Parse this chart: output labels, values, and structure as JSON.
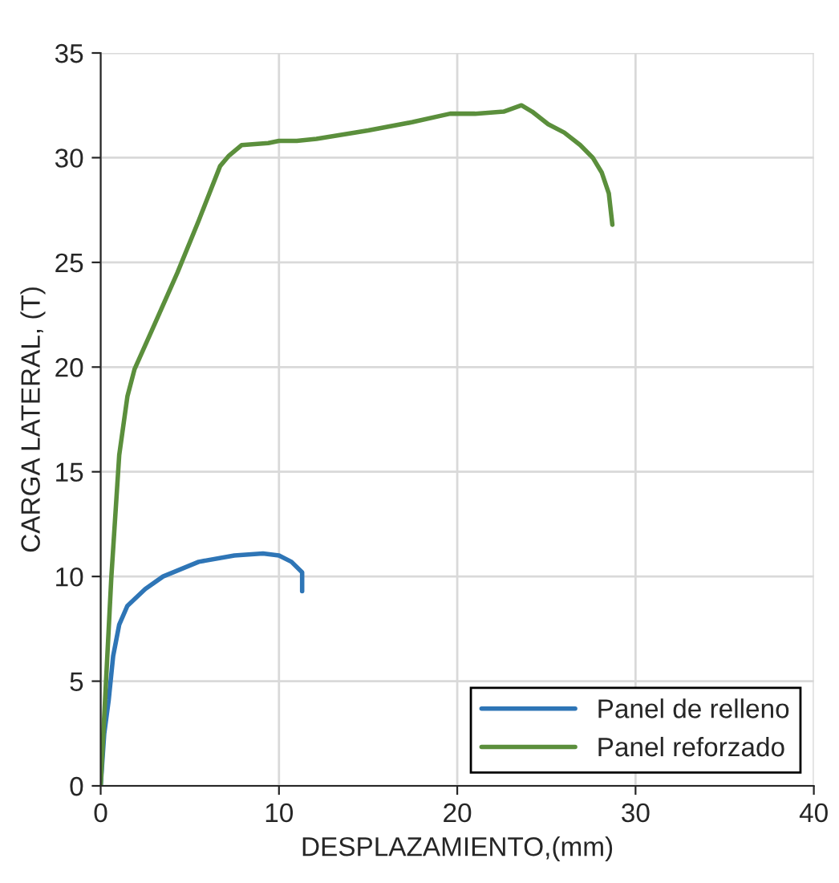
{
  "chart_data": {
    "type": "line",
    "xlabel": "DESPLAZAMIENTO,(mm)",
    "ylabel": "CARGA LATERAL, (T)",
    "xlim": [
      0,
      40
    ],
    "xticks": [
      0,
      10,
      20,
      30,
      40
    ],
    "ylim": [
      0,
      35
    ],
    "yticks": [
      0,
      5,
      10,
      15,
      20,
      25,
      30,
      35
    ],
    "grid": true,
    "legend": "bottom right",
    "series": [
      {
        "name": "Panel de relleno",
        "color": "#2e75b6",
        "x": [
          0,
          0.2,
          0.45,
          0.7,
          1.04,
          1.5,
          2.5,
          3.5,
          5.5,
          7.5,
          9.1,
          10,
          10.7,
          11.3,
          11.3
        ],
        "values": [
          0,
          2.5,
          4.1,
          6.2,
          7.7,
          8.6,
          9.4,
          10.0,
          10.7,
          11.0,
          11.1,
          11.0,
          10.7,
          10.2,
          9.3
        ]
      },
      {
        "name": "Panel reforzado",
        "color": "#5b8f3c",
        "x": [
          0,
          0.3,
          0.6,
          1.04,
          1.5,
          1.9,
          3,
          4.3,
          5.5,
          6.7,
          7.2,
          7.9,
          9.4,
          10,
          11,
          12.1,
          15,
          17.5,
          19.6,
          21,
          22.6,
          23.6,
          24.2,
          25.1,
          26,
          26.9,
          27.6,
          28.1,
          28.5,
          28.7
        ],
        "values": [
          0,
          5,
          10,
          15.8,
          18.6,
          19.9,
          22.0,
          24.5,
          27.0,
          29.6,
          30.1,
          30.6,
          30.7,
          30.8,
          30.8,
          30.9,
          31.3,
          31.7,
          32.1,
          32.1,
          32.2,
          32.5,
          32.2,
          31.6,
          31.2,
          30.6,
          30.0,
          29.3,
          28.3,
          26.8
        ]
      }
    ]
  }
}
